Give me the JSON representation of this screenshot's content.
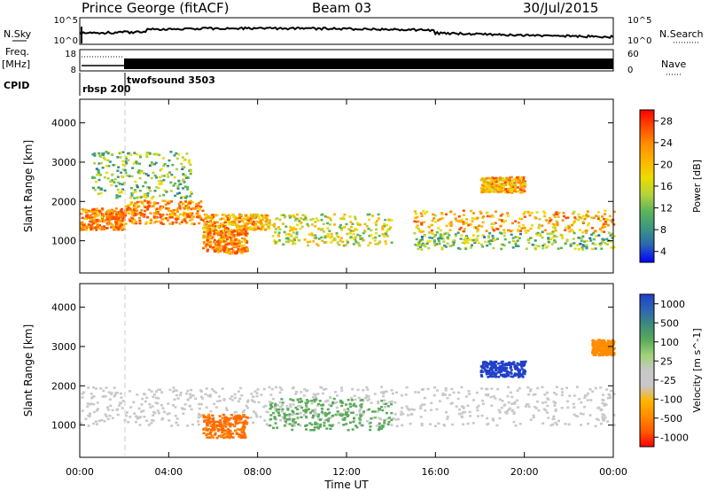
{
  "header": {
    "station": "Prince George (fitACF)",
    "beam": "Beam 03",
    "date": "30/Jul/2015"
  },
  "noise_panel": {
    "left_label": "N.Sky",
    "right_label": "N.Search",
    "tick_top": "10^5",
    "tick_bottom": "10^0"
  },
  "freq_panel": {
    "left_label_1": "Freq.",
    "left_label_2": "[MHz]",
    "tick_top": "18",
    "tick_bottom": "8",
    "right_label": "Nave",
    "right_tick_top": "60",
    "right_tick_bottom": "0"
  },
  "cpid": {
    "label": "CPID",
    "modes": [
      {
        "name": "rbsp 200",
        "start_hour": 0
      },
      {
        "name": "twofsound 3503",
        "start_hour": 2
      }
    ]
  },
  "power_colorbar": {
    "label": "Power [dB]",
    "ticks": [
      "28",
      "24",
      "20",
      "16",
      "12",
      "8",
      "4"
    ],
    "colors": [
      "#ff0000",
      "#ff4a00",
      "#ff8c00",
      "#ffb400",
      "#ecdc00",
      "#b4d23c",
      "#5ab45a",
      "#3c9682",
      "#2864b4",
      "#0000ff"
    ]
  },
  "velocity_colorbar": {
    "label": "Velocity [m s^-1]",
    "ticks": [
      "1000",
      "500",
      "100",
      "25",
      "-25",
      "-100",
      "-500",
      "-1000"
    ],
    "colors": [
      "#2040c8",
      "#2e64b4",
      "#3c8c7a",
      "#5aaa5a",
      "#a0d278",
      "#c8c8c8",
      "#c8c8c8",
      "#ffb400",
      "#ff8c00",
      "#ff5a00",
      "#ff0000"
    ]
  },
  "chart_data": {
    "type": "heatmap",
    "xlabel": "Time UT",
    "ylabel": "Slant Range [km]",
    "x_range_hours": [
      0,
      24
    ],
    "x_ticks": [
      "00:00",
      "04:00",
      "08:00",
      "12:00",
      "16:00",
      "20:00",
      "00:00"
    ],
    "y_range_km": [
      180,
      4600
    ],
    "y_ticks": [
      1000,
      2000,
      3000,
      4000
    ],
    "power_echo_regions": [
      {
        "t0": 0.0,
        "t1": 2.0,
        "r0": 1300,
        "r1": 1850,
        "power_db": 26
      },
      {
        "t0": 2.0,
        "t1": 5.5,
        "r0": 1450,
        "r1": 2050,
        "power_db": 25
      },
      {
        "t0": 5.5,
        "t1": 8.5,
        "r0": 1300,
        "r1": 1700,
        "power_db": 22
      },
      {
        "t0": 5.5,
        "t1": 7.5,
        "r0": 700,
        "r1": 1300,
        "power_db": 26
      },
      {
        "t0": 8.5,
        "t1": 14.0,
        "r0": 900,
        "r1": 1700,
        "power_db": 16
      },
      {
        "t0": 15.0,
        "t1": 24.0,
        "r0": 1250,
        "r1": 1800,
        "power_db": 22
      },
      {
        "t0": 15.0,
        "t1": 24.0,
        "r0": 800,
        "r1": 1250,
        "power_db": 12
      },
      {
        "t0": 0.5,
        "t1": 5.0,
        "r0": 2100,
        "r1": 3300,
        "power_db": 12
      },
      {
        "t0": 18.0,
        "t1": 20.0,
        "r0": 2250,
        "r1": 2650,
        "power_db": 22
      }
    ],
    "velocity_echo_regions": [
      {
        "t0": 0.0,
        "t1": 24.0,
        "r0": 1000,
        "r1": 2000,
        "velocity_mps": 0
      },
      {
        "t0": 5.5,
        "t1": 7.5,
        "r0": 700,
        "r1": 1300,
        "velocity_mps": -500
      },
      {
        "t0": 8.5,
        "t1": 14.0,
        "r0": 900,
        "r1": 1700,
        "velocity_mps": 150
      },
      {
        "t0": 18.0,
        "t1": 20.0,
        "r0": 2250,
        "r1": 2650,
        "velocity_mps": 1000
      },
      {
        "t0": 23.0,
        "t1": 24.0,
        "r0": 2800,
        "r1": 3200,
        "velocity_mps": -300
      }
    ]
  }
}
